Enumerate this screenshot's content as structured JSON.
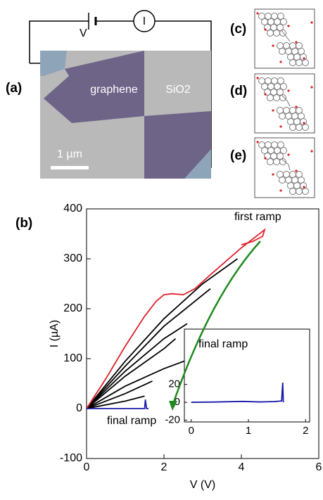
{
  "panels": {
    "a": "(a)",
    "b": "(b)",
    "c": "(c)",
    "d": "(d)",
    "e": "(e)"
  },
  "circuit": {
    "voltage": "V",
    "current": "I"
  },
  "micrograph": {
    "graphene": "graphene",
    "substrate": "SiO2",
    "scale_bar": "1 µm"
  },
  "chart_data": [
    {
      "type": "line",
      "xlabel": "V (V)",
      "ylabel": "I (µA)",
      "xlim": [
        0,
        6
      ],
      "ylim": [
        -100,
        400
      ],
      "xticks": [
        0,
        2,
        4,
        6
      ],
      "yticks": [
        -100,
        0,
        100,
        200,
        300,
        400
      ],
      "annotations": [
        "first ramp",
        "final ramp"
      ],
      "series": [
        {
          "color": "#000000",
          "x": [
            0,
            1,
            2,
            3,
            3.9
          ],
          "values": [
            0,
            95,
            180,
            250,
            300
          ]
        },
        {
          "color": "#000000",
          "x": [
            0,
            1,
            2,
            3.2
          ],
          "values": [
            0,
            85,
            165,
            240
          ]
        },
        {
          "color": "#000000",
          "x": [
            0,
            1,
            2,
            2.6
          ],
          "values": [
            0,
            75,
            140,
            170
          ]
        },
        {
          "color": "#000000",
          "x": [
            0,
            1,
            2,
            2.3
          ],
          "values": [
            0,
            65,
            120,
            140
          ]
        },
        {
          "color": "#000000",
          "x": [
            0,
            1,
            2,
            2.7
          ],
          "values": [
            0,
            45,
            80,
            100
          ]
        },
        {
          "color": "#000000",
          "x": [
            0,
            1,
            1.7
          ],
          "values": [
            0,
            30,
            55
          ]
        },
        {
          "color": "#000000",
          "x": [
            0,
            1,
            1.5
          ],
          "values": [
            0,
            15,
            25
          ]
        },
        {
          "color": "#e0202a",
          "x": [
            0,
            0.5,
            1,
            1.5,
            1.8,
            2,
            2.2,
            2.5,
            2.8,
            3.2,
            3.6,
            4,
            4.3,
            4.5,
            4.6,
            4.55,
            4.3,
            4
          ],
          "values": [
            0,
            60,
            125,
            185,
            215,
            228,
            230,
            228,
            240,
            268,
            295,
            322,
            340,
            352,
            358,
            345,
            335,
            328
          ]
        },
        {
          "color": "#1a1aa8",
          "x": [
            0,
            1.5,
            1.52,
            1.55,
            1.6
          ],
          "values": [
            0,
            0,
            18,
            0,
            0
          ]
        }
      ]
    },
    {
      "type": "line",
      "title": "final ramp",
      "xlim": [
        -0.12,
        2.07
      ],
      "ylim": [
        -22,
        82
      ],
      "xticks": [
        0,
        1,
        2
      ],
      "yticks": [
        -20,
        0,
        20
      ],
      "series": [
        {
          "color": "#1a1aa8",
          "x": [
            0,
            0.4,
            0.9,
            1.2,
            1.45,
            1.58,
            1.6,
            1.61
          ],
          "values": [
            0,
            0.3,
            1,
            0.4,
            0.8,
            1.5,
            22,
            0
          ]
        }
      ]
    }
  ]
}
